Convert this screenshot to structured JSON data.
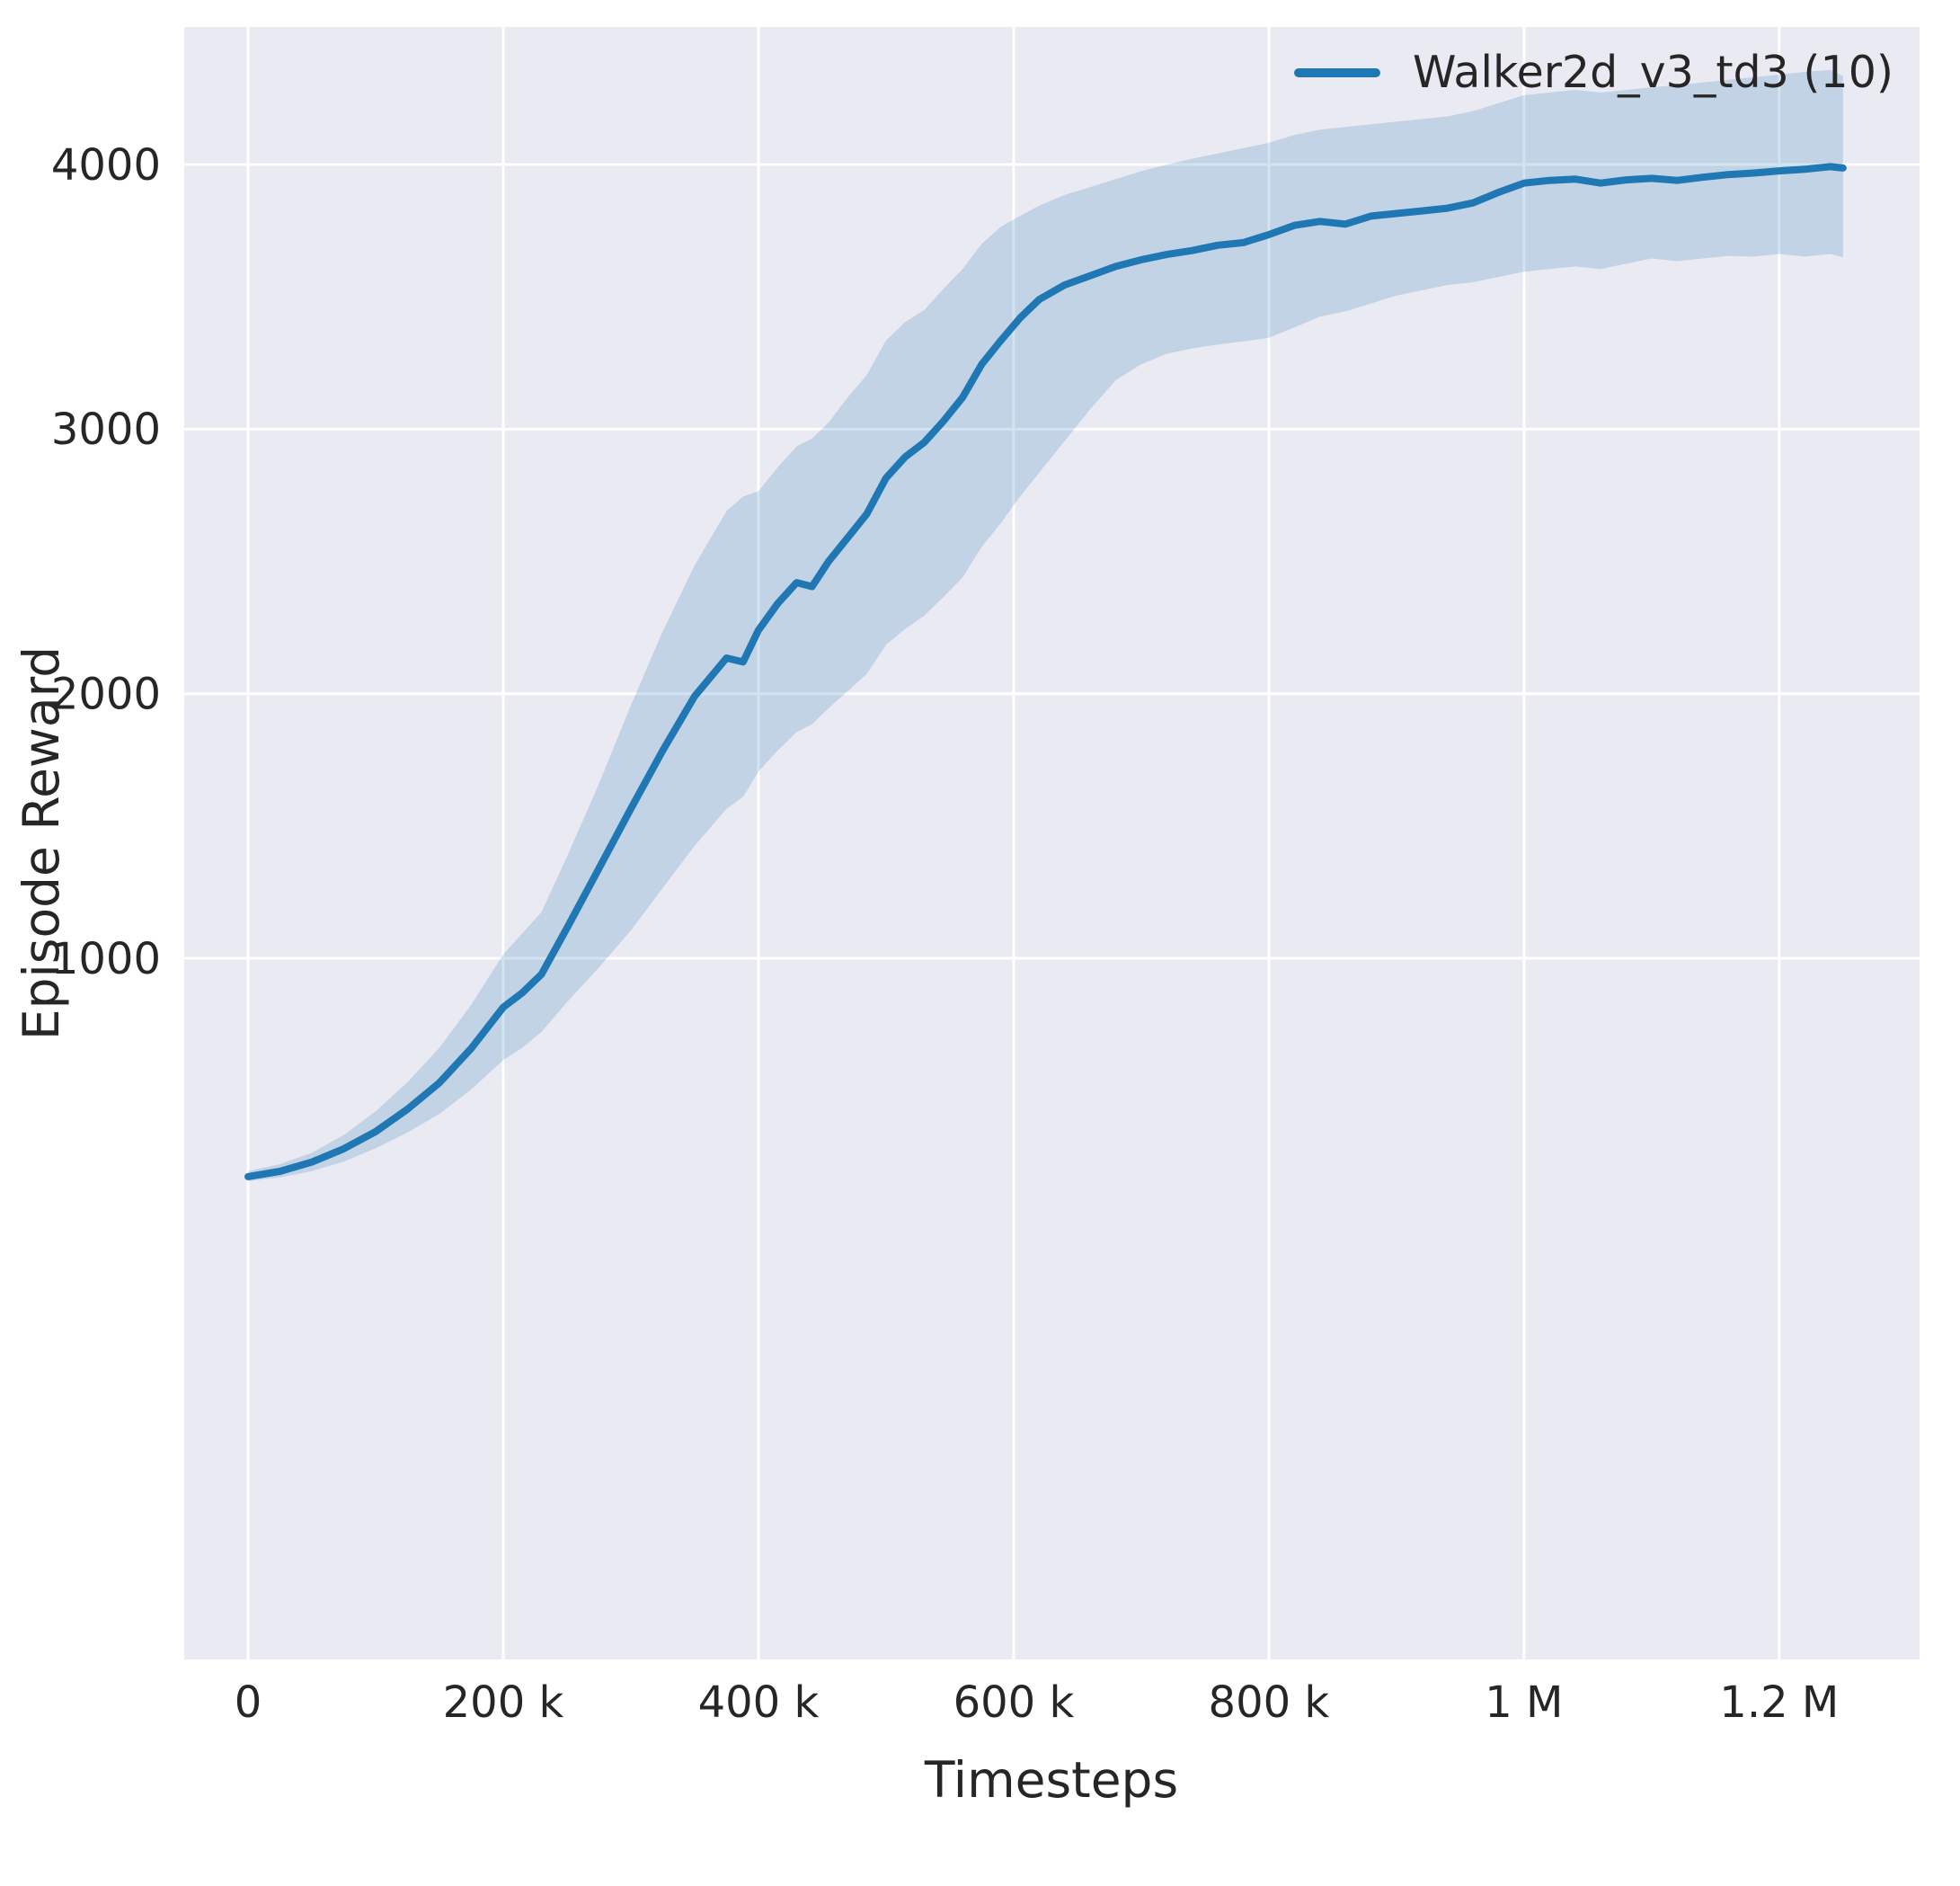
{
  "chart_data": {
    "type": "line",
    "title": "",
    "xlabel": "Timesteps",
    "ylabel": "Episode Reward",
    "grid": true,
    "legend_position": "upper right",
    "plot_background": "#eaeaf2",
    "grid_color": "#ffffff",
    "text_color": "#262626",
    "xlim": [
      -50000,
      1310000
    ],
    "ylim": [
      -1650,
      4520
    ],
    "x_ticks": [
      0,
      200000,
      400000,
      600000,
      800000,
      1000000,
      1200000
    ],
    "x_tick_labels": [
      "0",
      "200 k",
      "400 k",
      "600 k",
      "800 k",
      "1 M",
      "1.2 M"
    ],
    "y_ticks": [
      1000,
      2000,
      3000,
      4000
    ],
    "y_tick_labels": [
      "1000",
      "2000",
      "3000",
      "4000"
    ],
    "series": [
      {
        "name": "Walker2d_v3_td3 (10)",
        "color": "#1f77b4",
        "band_opacity": 0.2,
        "x": [
          0,
          25000,
          50000,
          75000,
          100000,
          125000,
          150000,
          175000,
          200000,
          215000,
          230000,
          250000,
          275000,
          300000,
          325000,
          350000,
          375000,
          388000,
          400000,
          415000,
          430000,
          442000,
          455000,
          470000,
          485000,
          500000,
          515000,
          530000,
          545000,
          560000,
          575000,
          590000,
          605000,
          620000,
          640000,
          660000,
          680000,
          700000,
          720000,
          740000,
          760000,
          780000,
          800000,
          820000,
          840000,
          860000,
          880000,
          900000,
          920000,
          940000,
          960000,
          980000,
          1000000,
          1020000,
          1040000,
          1060000,
          1080000,
          1100000,
          1120000,
          1140000,
          1160000,
          1180000,
          1200000,
          1220000,
          1240000,
          1250000
        ],
        "mean": [
          175,
          195,
          230,
          280,
          345,
          430,
          530,
          660,
          815,
          870,
          940,
          1115,
          1340,
          1565,
          1785,
          1990,
          2135,
          2120,
          2240,
          2340,
          2420,
          2405,
          2500,
          2590,
          2680,
          2815,
          2895,
          2950,
          3030,
          3120,
          3245,
          3335,
          3420,
          3490,
          3545,
          3580,
          3615,
          3640,
          3660,
          3675,
          3695,
          3705,
          3735,
          3770,
          3785,
          3775,
          3805,
          3815,
          3825,
          3835,
          3855,
          3895,
          3930,
          3940,
          3945,
          3930,
          3942,
          3948,
          3940,
          3952,
          3962,
          3968,
          3976,
          3982,
          3992,
          3987
        ],
        "lower": [
          158,
          172,
          196,
          232,
          282,
          342,
          412,
          505,
          615,
          662,
          722,
          835,
          965,
          1105,
          1265,
          1425,
          1565,
          1610,
          1705,
          1785,
          1855,
          1885,
          1945,
          2010,
          2075,
          2185,
          2245,
          2295,
          2365,
          2440,
          2555,
          2645,
          2745,
          2835,
          2955,
          3075,
          3185,
          3245,
          3285,
          3305,
          3320,
          3332,
          3345,
          3385,
          3425,
          3445,
          3475,
          3505,
          3525,
          3545,
          3555,
          3575,
          3595,
          3605,
          3615,
          3605,
          3625,
          3645,
          3635,
          3645,
          3655,
          3652,
          3662,
          3652,
          3662,
          3650
        ],
        "upper": [
          196,
          222,
          265,
          332,
          422,
          532,
          662,
          825,
          1015,
          1095,
          1175,
          1385,
          1660,
          1955,
          2235,
          2485,
          2690,
          2745,
          2765,
          2855,
          2935,
          2965,
          3025,
          3120,
          3205,
          3335,
          3405,
          3450,
          3530,
          3605,
          3700,
          3765,
          3805,
          3845,
          3885,
          3915,
          3945,
          3975,
          4000,
          4022,
          4042,
          4062,
          4082,
          4112,
          4132,
          4142,
          4152,
          4162,
          4172,
          4182,
          4202,
          4232,
          4262,
          4272,
          4282,
          4272,
          4282,
          4292,
          4300,
          4310,
          4320,
          4330,
          4340,
          4350,
          4358,
          4335
        ]
      }
    ]
  }
}
